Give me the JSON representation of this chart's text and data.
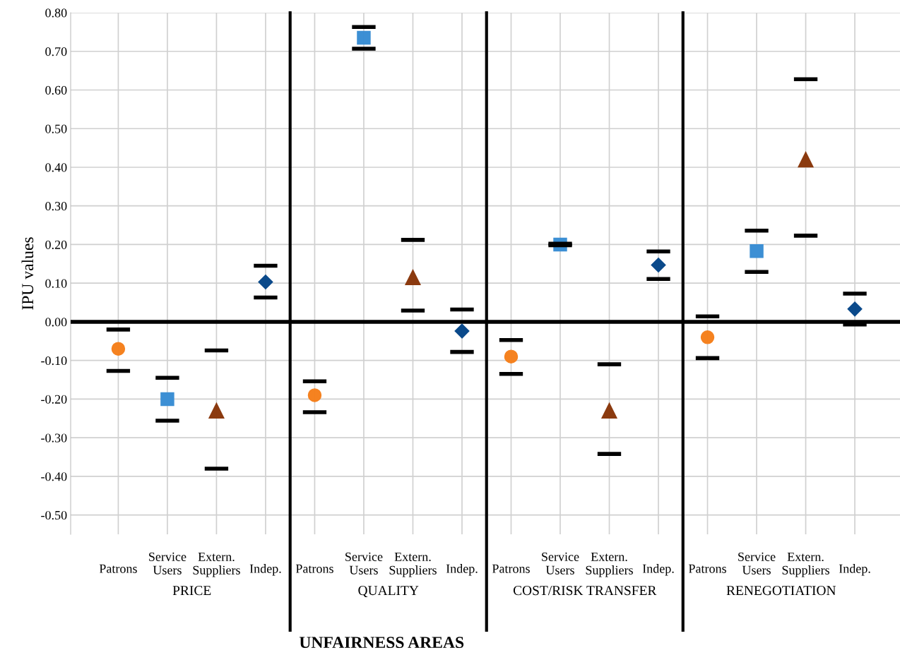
{
  "chart_data": {
    "type": "scatter",
    "ylabel": "IPU values",
    "xlabel": "UNFAIRNESS AREAS",
    "categories": [
      "Patrons",
      "Service Users",
      "Extern. Suppliers",
      "Indep.",
      "Patrons",
      "Service Users",
      "Extern. Suppliers",
      "Indep.",
      "Patrons",
      "Service Users",
      "Extern. Suppliers",
      "Indep.",
      "Patrons",
      "Service Users",
      "Extern. Suppliers",
      "Indep."
    ],
    "annotations": [
      "PRICE",
      "QUALITY",
      "COST/RISK TRANSFER",
      "RENEGOTIATION"
    ],
    "series": [
      {
        "color": "#f58220",
        "marker": "circle",
        "values": [
          -0.07,
          null,
          null,
          null,
          -0.19,
          null,
          null,
          null,
          -0.09,
          null,
          null,
          null,
          -0.04,
          null,
          null,
          null
        ],
        "errors": [
          [
            -0.127,
            -0.02
          ],
          null,
          null,
          null,
          [
            -0.234,
            -0.154
          ],
          null,
          null,
          null,
          [
            -0.135,
            -0.047
          ],
          null,
          null,
          null,
          [
            -0.094,
            0.014
          ],
          null,
          null,
          null
        ]
      },
      {
        "color": "#3c8fd4",
        "marker": "square",
        "values": [
          null,
          -0.2,
          null,
          null,
          null,
          0.735,
          null,
          null,
          null,
          0.2,
          null,
          null,
          null,
          0.183,
          null,
          null
        ],
        "errors": [
          null,
          [
            -0.256,
            -0.145
          ],
          null,
          null,
          null,
          [
            0.707,
            0.763
          ],
          null,
          null,
          null,
          [
            0.198,
            0.202
          ],
          null,
          null,
          null,
          [
            0.129,
            0.236
          ],
          null,
          null
        ]
      },
      {
        "color": "#8b3a0f",
        "marker": "triangle",
        "values": [
          null,
          null,
          -0.23,
          null,
          null,
          null,
          0.115,
          null,
          null,
          null,
          -0.23,
          null,
          null,
          null,
          0.42,
          null
        ],
        "errors": [
          null,
          null,
          [
            -0.38,
            -0.074
          ],
          null,
          null,
          null,
          [
            0.029,
            0.212
          ],
          null,
          null,
          null,
          [
            -0.342,
            -0.11
          ],
          null,
          null,
          null,
          [
            0.223,
            0.628
          ],
          null
        ]
      },
      {
        "color": "#0b4a8b",
        "marker": "diamond",
        "values": [
          null,
          null,
          null,
          0.103,
          null,
          null,
          null,
          -0.024,
          null,
          null,
          null,
          0.147,
          null,
          null,
          null,
          0.033
        ],
        "errors": [
          null,
          null,
          null,
          [
            0.063,
            0.145
          ],
          null,
          null,
          null,
          [
            -0.078,
            0.032
          ],
          null,
          null,
          null,
          [
            0.111,
            0.182
          ],
          null,
          null,
          null,
          [
            -0.007,
            0.073
          ]
        ]
      }
    ],
    "ylim": [
      -0.55,
      0.8
    ],
    "yticks": [
      {
        "value": -0.5,
        "label": "-0.50"
      },
      {
        "value": -0.4,
        "label": "-0.40"
      },
      {
        "value": -0.3,
        "label": "-0.30"
      },
      {
        "value": -0.2,
        "label": "-0.20"
      },
      {
        "value": -0.1,
        "label": "-0.10"
      },
      {
        "value": 0,
        "label": "0.00"
      },
      {
        "value": 0.1,
        "label": "0.10"
      },
      {
        "value": 0.2,
        "label": "0.20"
      },
      {
        "value": 0.3,
        "label": "0.30"
      },
      {
        "value": 0.4,
        "label": "0.40"
      },
      {
        "value": 0.5,
        "label": "0.50"
      },
      {
        "value": 0.6,
        "label": "0.60"
      },
      {
        "value": 0.7,
        "label": "0.70"
      },
      {
        "value": 0.8,
        "label": "0.80"
      }
    ],
    "ref_lines": [
      {
        "axis": "y",
        "value": 0,
        "color": "#000000"
      }
    ],
    "grid": true,
    "legend": false
  }
}
